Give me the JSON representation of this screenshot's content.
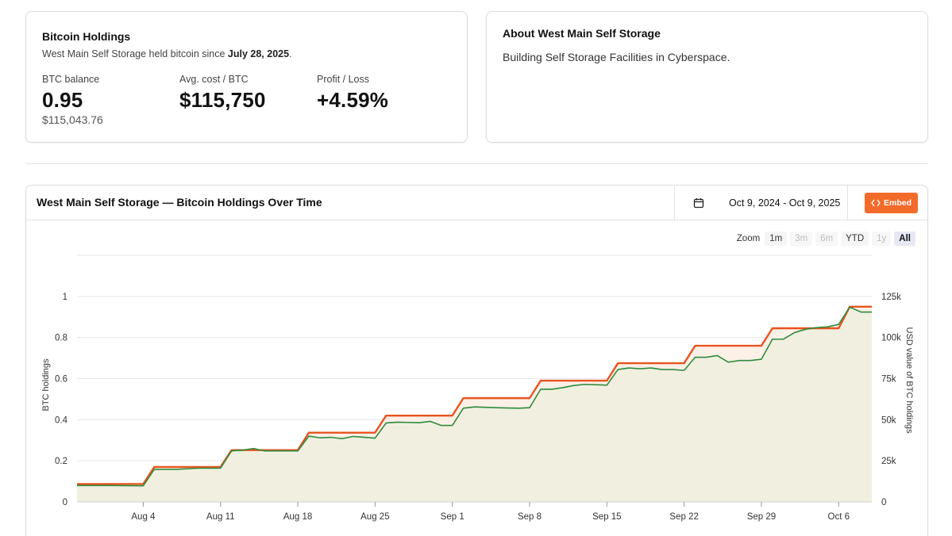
{
  "holdings": {
    "title": "Bitcoin Holdings",
    "subtitle_prefix": "West Main Self Storage held bitcoin since ",
    "since_date": "July 28, 2025",
    "subtitle_suffix": ".",
    "btc_balance_label": "BTC balance",
    "btc_balance_value": "0.95",
    "btc_balance_usd": "$115,043.76",
    "avg_cost_label": "Avg. cost / BTC",
    "avg_cost_value": "$115,750",
    "pl_label": "Profit / Loss",
    "pl_value": "+4.59%"
  },
  "about": {
    "title": "About West Main Self Storage",
    "text": "Building Self Storage Facilities in Cyberspace."
  },
  "chart_header": {
    "title": "West Main Self Storage — Bitcoin Holdings Over Time",
    "date_range": "Oct 9, 2024 - Oct 9, 2025",
    "embed_label": "Embed"
  },
  "zoom": {
    "label": "Zoom",
    "options": [
      {
        "label": "1m",
        "state": "enabled"
      },
      {
        "label": "3m",
        "state": "disabled"
      },
      {
        "label": "6m",
        "state": "disabled"
      },
      {
        "label": "YTD",
        "state": "enabled"
      },
      {
        "label": "1y",
        "state": "disabled"
      },
      {
        "label": "All",
        "state": "active"
      }
    ]
  },
  "colors": {
    "btc_line": "#e8531f",
    "usd_line": "#2e8b3e",
    "btc_fill": "#fdf0e6",
    "usd_fill": "#f1efe0",
    "accent": "#f26b2b"
  },
  "chart_data": {
    "type": "area",
    "title": "West Main Self Storage — Bitcoin Holdings Over Time",
    "ylabel_left": "BTC holdings",
    "ylabel_right": "USD value of BTC holdings",
    "ylim_left": [
      0,
      1.2
    ],
    "ylim_right": [
      0,
      150000
    ],
    "yticks_left": [
      "0",
      "0.2",
      "0.4",
      "0.6",
      "0.8",
      "1"
    ],
    "yticks_left_values": [
      0,
      0.2,
      0.4,
      0.6,
      0.8,
      1.0
    ],
    "yticks_right": [
      "0",
      "25k",
      "50k",
      "75k",
      "100k",
      "125k"
    ],
    "yticks_right_values": [
      0,
      25000,
      50000,
      75000,
      100000,
      125000
    ],
    "xlim_days": [
      0,
      72
    ],
    "xticks": [
      "Aug 4",
      "Aug 11",
      "Aug 18",
      "Aug 25",
      "Sep 1",
      "Sep 8",
      "Sep 15",
      "Sep 22",
      "Sep 29",
      "Oct 6"
    ],
    "xticks_days": [
      6,
      13,
      20,
      27,
      34,
      41,
      48,
      55,
      62,
      69
    ],
    "x_day0": "2025-07-29",
    "series": [
      {
        "name": "BTC holdings",
        "axis": "left",
        "points": [
          [
            0,
            0.087
          ],
          [
            6,
            0.087
          ],
          [
            7,
            0.17
          ],
          [
            13,
            0.17
          ],
          [
            14,
            0.252
          ],
          [
            20,
            0.252
          ],
          [
            21,
            0.337
          ],
          [
            27,
            0.337
          ],
          [
            28,
            0.42
          ],
          [
            34,
            0.42
          ],
          [
            35,
            0.505
          ],
          [
            41,
            0.505
          ],
          [
            42,
            0.59
          ],
          [
            48,
            0.59
          ],
          [
            49,
            0.675
          ],
          [
            55,
            0.675
          ],
          [
            56,
            0.76
          ],
          [
            62,
            0.76
          ],
          [
            63,
            0.845
          ],
          [
            69,
            0.845
          ],
          [
            70,
            0.95
          ],
          [
            72,
            0.95
          ]
        ]
      },
      {
        "name": "USD value",
        "axis": "right",
        "points": [
          [
            0,
            10000
          ],
          [
            3,
            10000
          ],
          [
            6,
            9800
          ],
          [
            7,
            19800
          ],
          [
            9,
            19800
          ],
          [
            11,
            20500
          ],
          [
            13,
            20500
          ],
          [
            14,
            31000
          ],
          [
            15,
            31500
          ],
          [
            16,
            32500
          ],
          [
            17,
            31000
          ],
          [
            20,
            31000
          ],
          [
            21,
            40000
          ],
          [
            22,
            39000
          ],
          [
            23,
            39300
          ],
          [
            24,
            38500
          ],
          [
            25,
            39800
          ],
          [
            27,
            38800
          ],
          [
            28,
            48000
          ],
          [
            29,
            48500
          ],
          [
            31,
            48200
          ],
          [
            32,
            49000
          ],
          [
            33,
            46500
          ],
          [
            34,
            46500
          ],
          [
            35,
            57000
          ],
          [
            36,
            57800
          ],
          [
            38,
            57300
          ],
          [
            40,
            57000
          ],
          [
            41,
            57300
          ],
          [
            42,
            68500
          ],
          [
            43,
            68500
          ],
          [
            44,
            69500
          ],
          [
            45,
            70800
          ],
          [
            46,
            71500
          ],
          [
            47,
            71300
          ],
          [
            48,
            71000
          ],
          [
            49,
            80500
          ],
          [
            50,
            81500
          ],
          [
            51,
            81000
          ],
          [
            52,
            81500
          ],
          [
            53,
            80500
          ],
          [
            54,
            80500
          ],
          [
            55,
            80000
          ],
          [
            56,
            88000
          ],
          [
            57,
            88000
          ],
          [
            58,
            89000
          ],
          [
            59,
            85000
          ],
          [
            60,
            86000
          ],
          [
            61,
            86000
          ],
          [
            62,
            86800
          ],
          [
            63,
            99000
          ],
          [
            64,
            99000
          ],
          [
            65,
            103000
          ],
          [
            66,
            105000
          ],
          [
            67,
            106000
          ],
          [
            68,
            106500
          ],
          [
            69,
            108000
          ],
          [
            70,
            118500
          ],
          [
            71,
            115500
          ],
          [
            72,
            115500
          ]
        ]
      }
    ]
  }
}
